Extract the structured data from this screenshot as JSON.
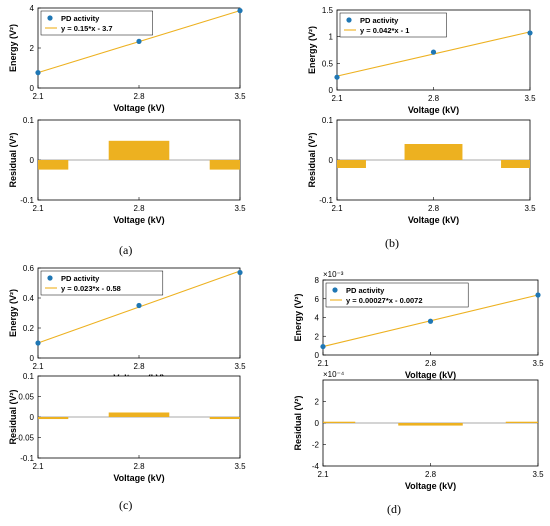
{
  "panel_labels": [
    "(a)",
    "(b)",
    "(c)",
    "(d)"
  ],
  "colors": {
    "marker": "#1f77b4",
    "fit_line": "#edb120",
    "residual_bar": "#edb120",
    "axis": "#000000",
    "frame": "#000000"
  },
  "chart_data": [
    {
      "id": "a-energy",
      "type": "scatter",
      "xlabel": "Voltage (kV)",
      "ylabel": "Energy (V²)",
      "xlim": [
        2.1,
        3.5
      ],
      "ylim": [
        0,
        4
      ],
      "xticks": [
        "2.1",
        "2.8",
        "3.5"
      ],
      "yticks": [
        "0",
        "2",
        "4"
      ],
      "exponent_label": "",
      "series": [
        {
          "name": "PD activity",
          "kind": "marker",
          "x": [
            2.1,
            2.8,
            3.5
          ],
          "y": [
            0.77,
            2.33,
            3.87
          ]
        },
        {
          "name": "y = 0.15*x - 3.7",
          "kind": "line",
          "x": [
            2.1,
            3.5
          ],
          "y": [
            0.77,
            3.87
          ]
        }
      ],
      "legend": "top-left"
    },
    {
      "id": "a-residual",
      "type": "bar",
      "xlabel": "Voltage (kV)",
      "ylabel": "Residual (V²)",
      "xlim": [
        2.1,
        3.5
      ],
      "ylim": [
        -0.1,
        0.1
      ],
      "xticks": [
        "2.1",
        "2.8",
        "3.5"
      ],
      "yticks": [
        "0.1",
        "0",
        "-0.1"
      ],
      "exponent_label": "",
      "x": [
        2.1,
        2.8,
        3.5
      ],
      "values": [
        -0.024,
        0.048,
        -0.024
      ]
    },
    {
      "id": "b-energy",
      "type": "scatter",
      "xlabel": "Voltage (kV)",
      "ylabel": "Energy (V²)",
      "xlim": [
        2.1,
        3.5
      ],
      "ylim": [
        0,
        1.5
      ],
      "xticks": [
        "2.1",
        "2.8",
        "3.5"
      ],
      "yticks": [
        "0",
        "0.5",
        "1",
        "1.5"
      ],
      "exponent_label": "",
      "series": [
        {
          "name": "PD activity",
          "kind": "marker",
          "x": [
            2.1,
            2.8,
            3.5
          ],
          "y": [
            0.24,
            0.71,
            1.07
          ]
        },
        {
          "name": "y = 0.042*x - 1",
          "kind": "line",
          "x": [
            2.1,
            3.5
          ],
          "y": [
            0.26,
            1.09
          ]
        }
      ],
      "legend": "top-left"
    },
    {
      "id": "b-residual",
      "type": "bar",
      "xlabel": "Voltage (kV)",
      "ylabel": "Residual (V²)",
      "xlim": [
        2.1,
        3.5
      ],
      "ylim": [
        -0.1,
        0.1
      ],
      "xticks": [
        "2.1",
        "2.8",
        "3.5"
      ],
      "yticks": [
        "0.1",
        "0",
        "-0.1"
      ],
      "exponent_label": "",
      "x": [
        2.1,
        2.8,
        3.5
      ],
      "values": [
        -0.02,
        0.04,
        -0.02
      ]
    },
    {
      "id": "c-energy",
      "type": "scatter",
      "xlabel": "Voltage (kV)",
      "ylabel": "Energy (V²)",
      "xlim": [
        2.1,
        3.5
      ],
      "ylim": [
        0,
        0.6
      ],
      "xticks": [
        "2.1",
        "2.8",
        "3.5"
      ],
      "yticks": [
        "0",
        "0.2",
        "0.4",
        "0.6"
      ],
      "exponent_label": "",
      "series": [
        {
          "name": "PD activity",
          "kind": "marker",
          "x": [
            2.1,
            2.8,
            3.5
          ],
          "y": [
            0.1,
            0.35,
            0.57
          ]
        },
        {
          "name": "y = 0.023*x - 0.58",
          "kind": "line",
          "x": [
            2.1,
            3.5
          ],
          "y": [
            0.1,
            0.58
          ]
        }
      ],
      "legend": "top-left"
    },
    {
      "id": "c-residual",
      "type": "bar",
      "xlabel": "Voltage (kV)",
      "ylabel": "Residual (V²)",
      "xlim": [
        2.1,
        3.5
      ],
      "ylim": [
        -0.1,
        0.1
      ],
      "xticks": [
        "2.1",
        "2.8",
        "3.5"
      ],
      "yticks": [
        "0.1",
        "0.05",
        "0",
        "-0.05",
        "-0.1"
      ],
      "exponent_label": "",
      "x": [
        2.1,
        2.8,
        3.5
      ],
      "values": [
        -0.005,
        0.011,
        -0.005
      ]
    },
    {
      "id": "d-energy",
      "type": "scatter",
      "xlabel": "Voltage (kV)",
      "ylabel": "Energy (V²)",
      "xlim": [
        2.1,
        3.5
      ],
      "ylim": [
        0,
        8
      ],
      "xticks": [
        "2.1",
        "2.8",
        "3.5"
      ],
      "yticks": [
        "0",
        "2",
        "4",
        "6",
        "8"
      ],
      "exponent_label": "×10⁻³",
      "series": [
        {
          "name": "PD activity",
          "kind": "marker",
          "x": [
            2.1,
            2.8,
            3.5
          ],
          "y": [
            0.9,
            3.6,
            6.4
          ]
        },
        {
          "name": "y = 0.00027*x - 0.0072",
          "kind": "line",
          "x": [
            2.1,
            3.5
          ],
          "y": [
            0.9,
            6.4
          ]
        }
      ],
      "legend": "top-left"
    },
    {
      "id": "d-residual",
      "type": "bar",
      "xlabel": "Voltage (kV)",
      "ylabel": "Residual (V²)",
      "xlim": [
        2.1,
        3.5
      ],
      "ylim": [
        -4,
        4
      ],
      "xticks": [
        "2.1",
        "2.8",
        "3.5"
      ],
      "yticks": [
        "2",
        "0",
        "-2",
        "-4"
      ],
      "exponent_label": "×10⁻⁴",
      "x": [
        2.1,
        2.8,
        3.5
      ],
      "values": [
        0.12,
        -0.24,
        0.12
      ]
    }
  ]
}
